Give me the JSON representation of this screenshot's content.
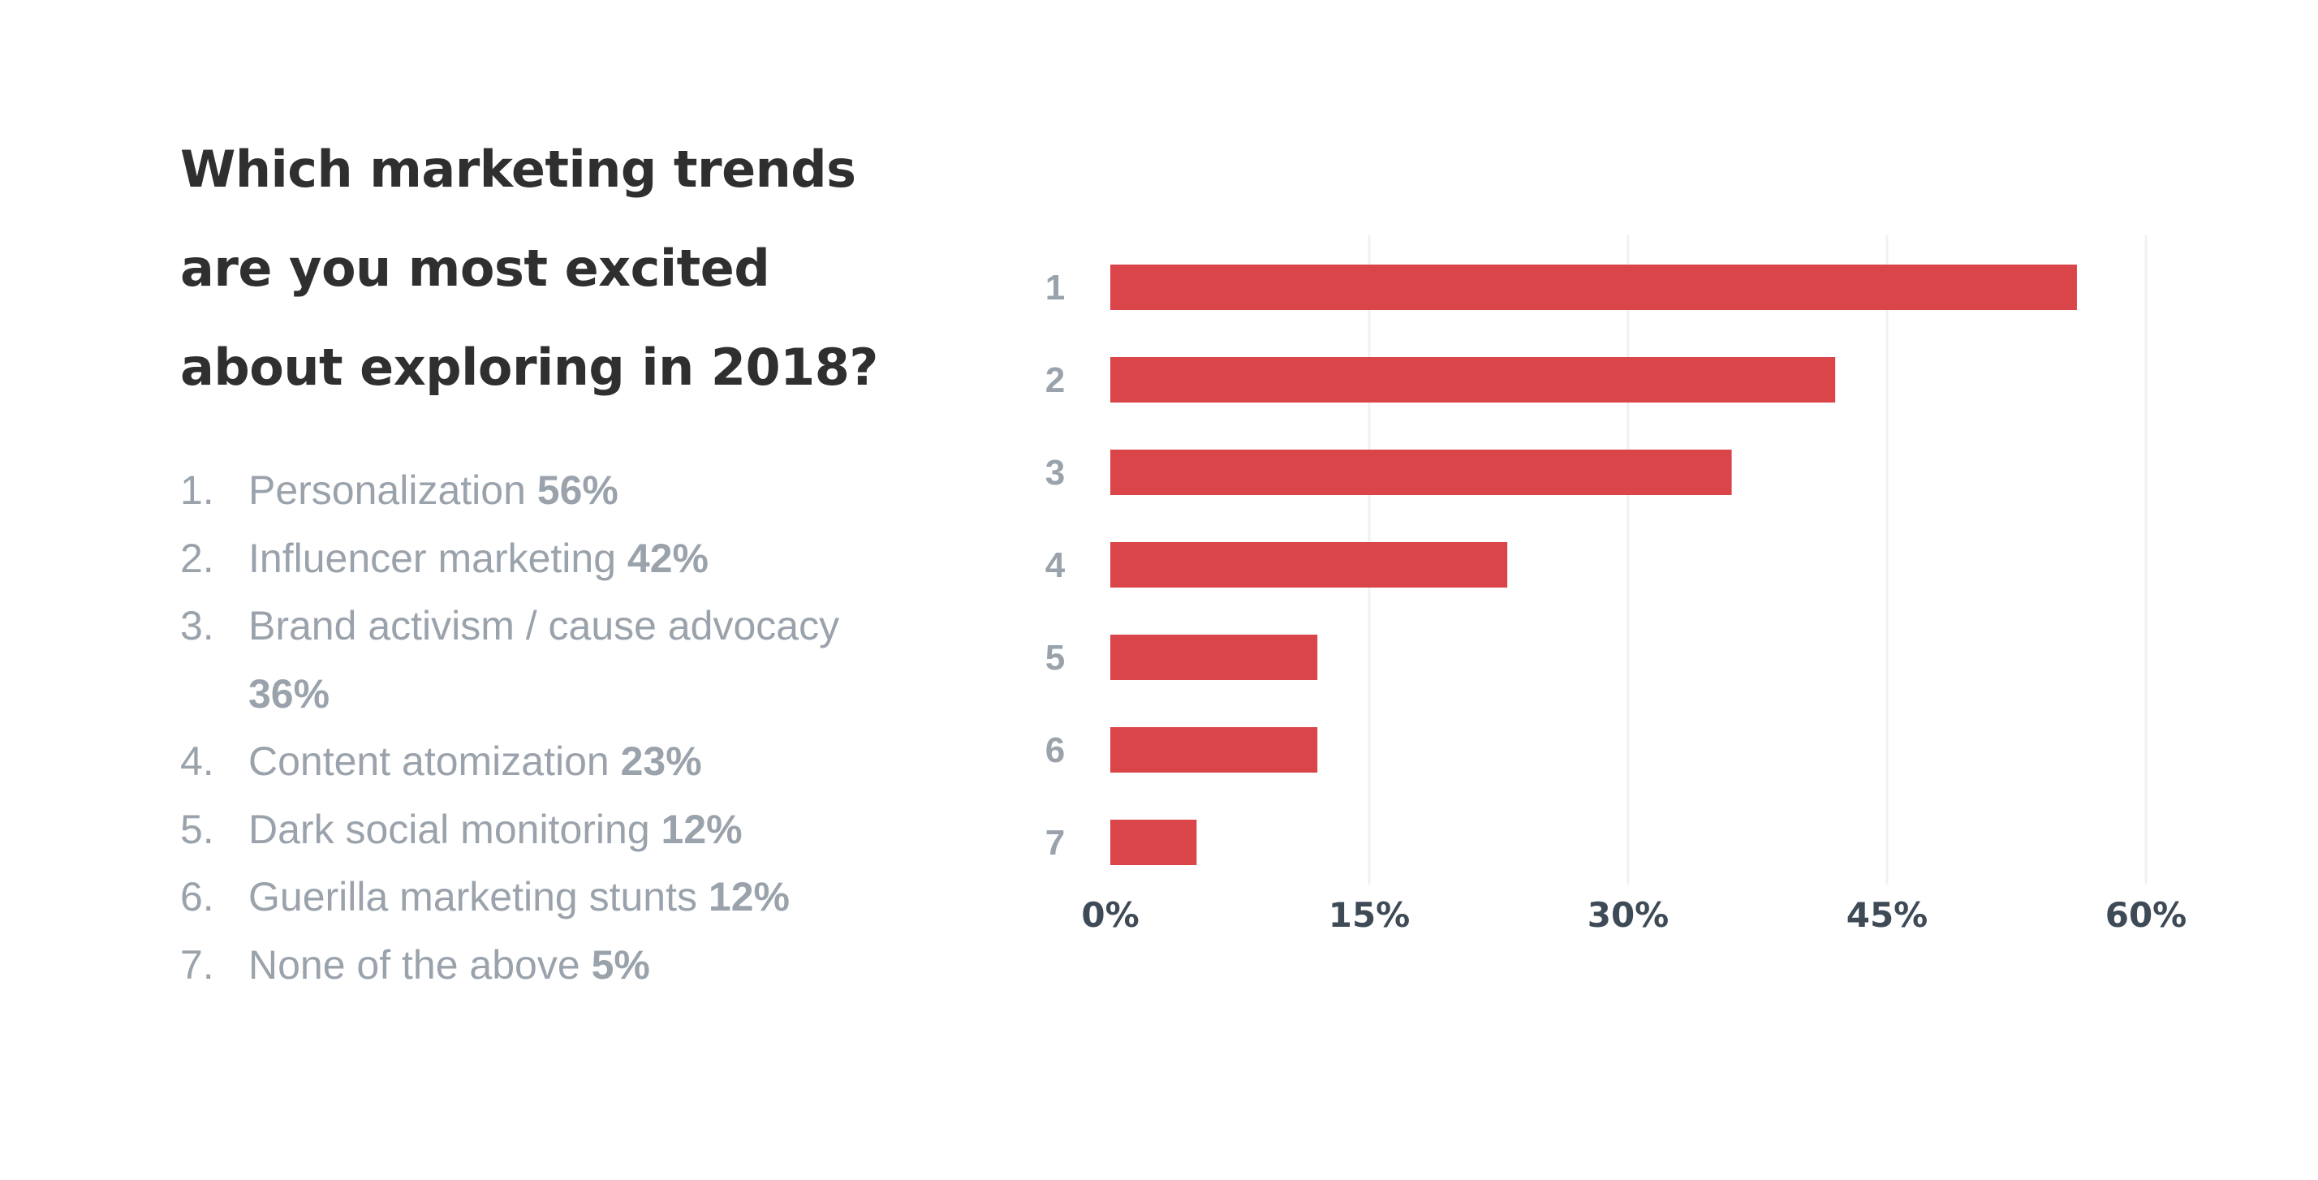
{
  "title_lines": [
    "Which marketing trends",
    "are you most excited",
    "about exploring in 2018?"
  ],
  "legend": [
    {
      "num": "1.",
      "label": "Personalization",
      "value": "56%"
    },
    {
      "num": "2.",
      "label": "Influencer marketing",
      "value": "42%"
    },
    {
      "num": "3.",
      "label": "Brand activism / cause advocacy",
      "value": "36%"
    },
    {
      "num": "4.",
      "label": "Content atomization",
      "value": "23%"
    },
    {
      "num": "5.",
      "label": "Dark social monitoring",
      "value": "12%"
    },
    {
      "num": "6.",
      "label": "Guerilla marketing stunts",
      "value": "12%"
    },
    {
      "num": "7.",
      "label": "None of the above",
      "value": "5%"
    }
  ],
  "chart_data": {
    "type": "bar",
    "orientation": "horizontal",
    "title": "Which marketing trends are you most excited about exploring in 2018?",
    "categories": [
      "1",
      "2",
      "3",
      "4",
      "5",
      "6",
      "7"
    ],
    "values": [
      56,
      42,
      36,
      23,
      12,
      12,
      5
    ],
    "xlim": [
      0,
      60
    ],
    "xticks": [
      0,
      15,
      30,
      45,
      60
    ],
    "xtick_labels": [
      "0%",
      "15%",
      "30%",
      "45%",
      "60%"
    ],
    "grid": true,
    "colors": {
      "bar": "#d94548",
      "grid": "#f0f1f3",
      "y_tick": "#9aa2ab",
      "x_tick": "#3f4a57"
    }
  }
}
